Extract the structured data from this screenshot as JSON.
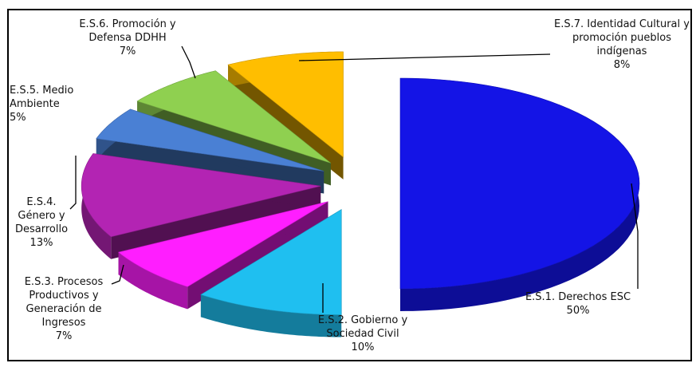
{
  "chart_data": {
    "type": "pie",
    "categories": [
      "E.S.1. Derechos ESC",
      "E.S.2. Gobierno y Sociedad Civil",
      "E.S.3. Procesos Productivos y Generación de Ingresos",
      "E.S.4. Género y Desarrollo",
      "E.S.5. Medio Ambiente",
      "E.S.6. Promoción y Defensa DDHH",
      "E.S.7. Identidad Cultural y promoción pueblos indígenas"
    ],
    "values": [
      50,
      10,
      7,
      13,
      5,
      7,
      8
    ],
    "value_labels": [
      "50%",
      "10%",
      "7%",
      "13%",
      "5%",
      "7%",
      "8%"
    ],
    "colors": [
      "#1414e6",
      "#1fbff0",
      "#ff1eff",
      "#b324b3",
      "#4a80d4",
      "#8fd050",
      "#ffbe00"
    ]
  }
}
